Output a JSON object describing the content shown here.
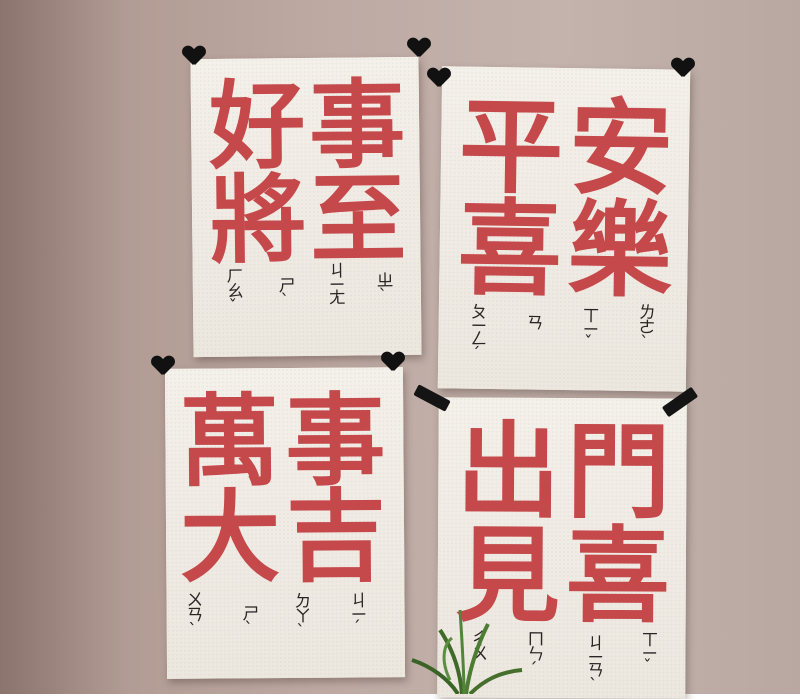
{
  "posters": [
    {
      "characters": [
        "好",
        "事",
        "將",
        "至"
      ],
      "phonetics": [
        "ㄏㄠˇ",
        "ㄕˋ",
        "ㄐㄧㄤ",
        "ㄓˋ"
      ]
    },
    {
      "characters": [
        "平",
        "安",
        "喜",
        "樂"
      ],
      "phonetics": [
        "ㄆㄧㄥˊ",
        "ㄢ",
        "ㄒㄧˇ",
        "ㄌㄜˋ"
      ]
    },
    {
      "characters": [
        "萬",
        "事",
        "大",
        "吉"
      ],
      "phonetics": [
        "ㄨㄢˋ",
        "ㄕˋ",
        "ㄉㄚˋ",
        "ㄐㄧˊ"
      ]
    },
    {
      "characters": [
        "出",
        "門",
        "見",
        "喜"
      ],
      "phonetics": [
        "ㄔㄨ",
        "ㄇㄣˊ",
        "ㄐㄧㄢˋ",
        "ㄒㄧˇ"
      ]
    }
  ],
  "colors": {
    "ink_red": "#c5484a",
    "paper": "#f1ede6",
    "wall": "#bda9a2",
    "tape": "#111111"
  }
}
